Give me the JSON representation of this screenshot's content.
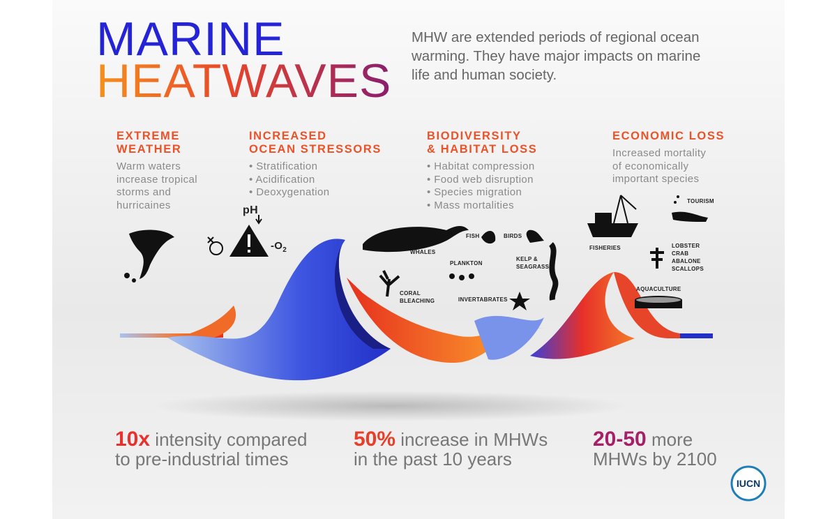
{
  "header": {
    "title_line1": "MARINE",
    "title_line2": "HEATWAVES",
    "intro_lines": [
      "MHW are extended periods of regional ocean",
      "warming. They have major impacts on marine",
      "life and human society."
    ]
  },
  "impacts": [
    {
      "heading_lines": [
        "EXTREME",
        "WEATHER"
      ],
      "body_lines": [
        "Warm waters",
        "increase tropical",
        "storms and",
        "hurricaines"
      ]
    },
    {
      "heading_lines": [
        "INCREASED",
        "OCEAN STRESSORS"
      ],
      "bullets": [
        "Stratification",
        "Acidification",
        "Deoxygenation"
      ]
    },
    {
      "heading_lines": [
        "BIODIVERSITY",
        "& HABITAT LOSS"
      ],
      "bullets": [
        "Habitat compression",
        "Food web disruption",
        "Species migration",
        "Mass mortalities"
      ]
    },
    {
      "heading_lines": [
        "ECONOMIC LOSS"
      ],
      "body_lines": [
        "Increased mortality",
        "of economically",
        "important species"
      ]
    }
  ],
  "icon_labels": {
    "ph": "pH",
    "oxygen": "-O",
    "oxygen_sub": "2",
    "whales": "WHALES",
    "fish": "FISH",
    "birds": "BIRDS",
    "plankton": "PLANKTON",
    "kelp": [
      "KELP &",
      "SEAGRASS"
    ],
    "coral": [
      "CORAL",
      "BLEACHING"
    ],
    "invertebrates": "INVERTABRATES",
    "fisheries": "FISHERIES",
    "tourism": "TOURISM",
    "shellfish": [
      "LOBSTER",
      "CRAB",
      "ABALONE",
      "SCALLOPS"
    ],
    "aquaculture": "AQUACULTURE"
  },
  "stats": [
    {
      "figure": "10x",
      "lines": [
        "intensity compared",
        "to pre-industrial times"
      ]
    },
    {
      "figure": "50%",
      "lines": [
        "increase in MHWs",
        "in the past 10 years"
      ]
    },
    {
      "figure": "20-50",
      "lines": [
        "more",
        "MHWs by 2100"
      ]
    }
  ],
  "logo": "IUCN"
}
